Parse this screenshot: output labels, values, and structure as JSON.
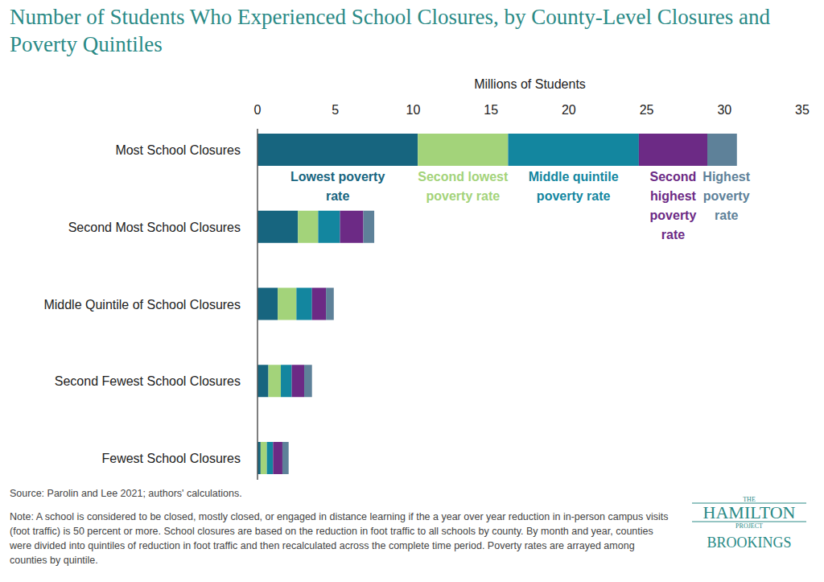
{
  "chart_data": {
    "type": "bar",
    "orientation": "horizontal",
    "stacked": true,
    "grid": false,
    "title": "Number of Students Who Experienced School Closures, by County-Level Closures and Poverty Quintiles",
    "x_label": "Millions of Students",
    "xlim": [
      0,
      35
    ],
    "xticks": [
      0,
      5,
      10,
      15,
      20,
      25,
      30,
      35
    ],
    "categories": [
      "Most School Closures",
      "Second Most School Closures",
      "Middle Quintile of School Closures",
      "Second Fewest School Closures",
      "Fewest School Closures"
    ],
    "series": [
      {
        "name": "Lowest poverty rate",
        "color": "#17657f",
        "values": [
          10.3,
          2.6,
          1.3,
          0.7,
          0.2
        ]
      },
      {
        "name": "Second lowest poverty rate",
        "color": "#a3d37a",
        "values": [
          5.8,
          1.3,
          1.2,
          0.8,
          0.4
        ]
      },
      {
        "name": "Middle quintile poverty rate",
        "color": "#13869f",
        "values": [
          8.4,
          1.4,
          1.0,
          0.7,
          0.4
        ]
      },
      {
        "name": "Second highest poverty rate",
        "color": "#6c2a85",
        "values": [
          4.4,
          1.5,
          0.9,
          0.8,
          0.6
        ]
      },
      {
        "name": "Highest poverty rate",
        "color": "#5e8199",
        "values": [
          1.9,
          0.7,
          0.5,
          0.5,
          0.4
        ]
      }
    ],
    "source": "Source: Parolin and Lee 2021; authors' calculations.",
    "note": "Note: A school is considered to be closed, mostly closed, or engaged in distance learning if the a year over year reduction in in-person campus visits (foot traffic) is 50 percent or more. School closures are based on the reduction in foot traffic to all schools by county. By month and year, counties were divided into quintiles of reduction in foot traffic and then recalculated across the complete time period. Poverty rates are arrayed among counties by quintile.",
    "logo_texts": [
      "THE",
      "HAMILTON",
      "PROJECT",
      "BROOKINGS"
    ]
  }
}
